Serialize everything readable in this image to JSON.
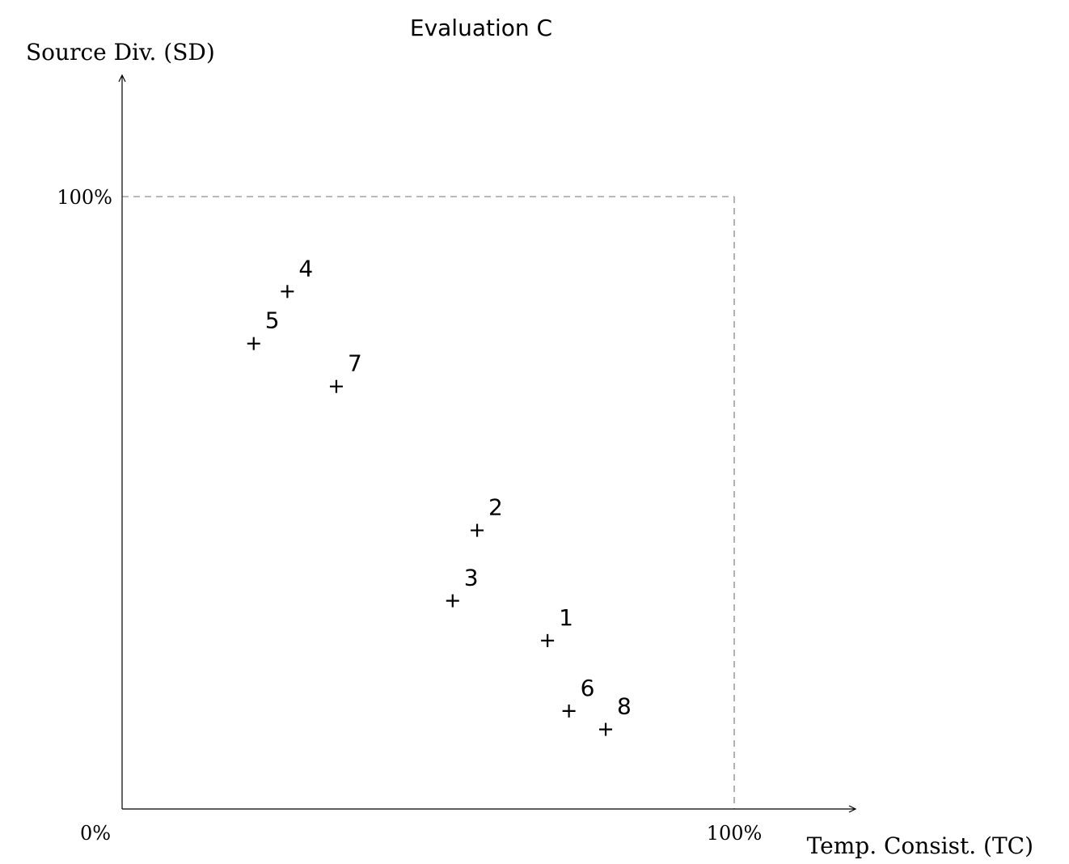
{
  "chart_data": {
    "type": "scatter",
    "title": "Evaluation C",
    "xlabel": "Temp. Consist. (TC)",
    "ylabel": "Source Div. (SD)",
    "xlim": [
      0,
      100
    ],
    "ylim": [
      0,
      100
    ],
    "x_ticks": [
      {
        "value": 0,
        "label": "0%"
      },
      {
        "value": 100,
        "label": "100%"
      }
    ],
    "y_ticks": [
      {
        "value": 100,
        "label": "100%"
      }
    ],
    "reference_box": {
      "x": 100,
      "y": 100,
      "style": "dashed"
    },
    "marker": "+",
    "grid": false,
    "points": [
      {
        "label": "1",
        "x": 69.5,
        "y": 27.5
      },
      {
        "label": "2",
        "x": 58,
        "y": 45.5
      },
      {
        "label": "3",
        "x": 54,
        "y": 34
      },
      {
        "label": "4",
        "x": 27,
        "y": 84.5
      },
      {
        "label": "5",
        "x": 21.5,
        "y": 76
      },
      {
        "label": "6",
        "x": 73,
        "y": 16
      },
      {
        "label": "7",
        "x": 35,
        "y": 69
      },
      {
        "label": "8",
        "x": 79,
        "y": 13
      }
    ]
  }
}
